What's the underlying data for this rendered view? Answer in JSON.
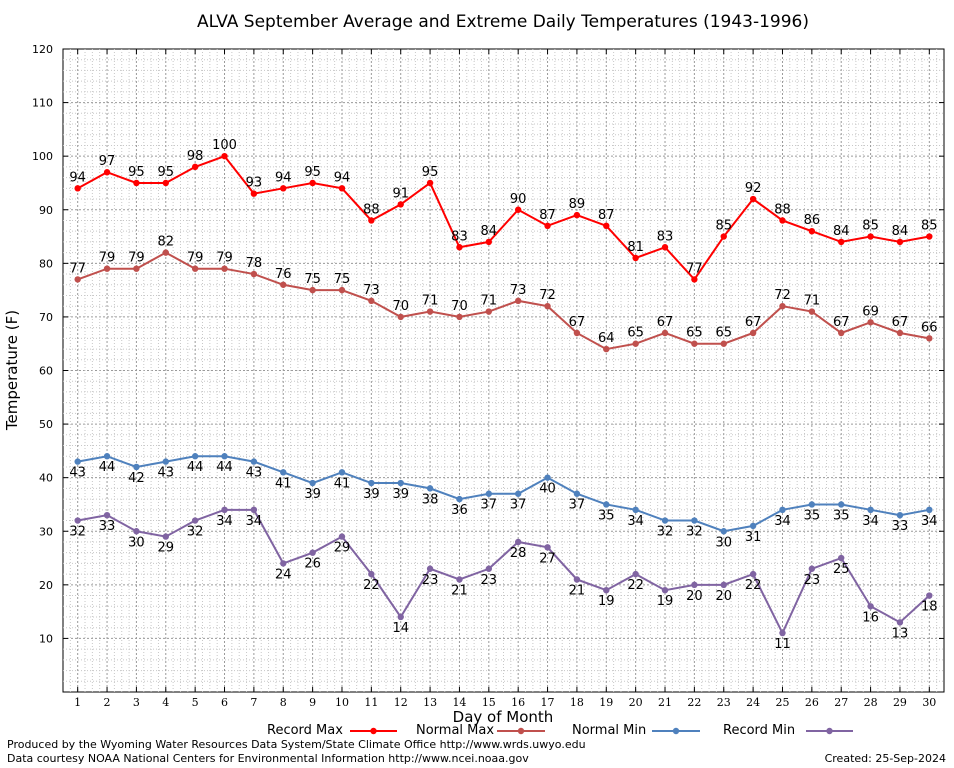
{
  "credits": {
    "line1": "Produced by the Wyoming Water Resources Data System/State Climate Office http://www.wrds.uwyo.edu",
    "line2": "Data courtesy NOAA National Centers for Environmental Information http://www.ncei.noaa.gov",
    "created": "Created:  25-Sep-2024"
  },
  "chart_data": {
    "type": "line",
    "title": "ALVA September Average and Extreme Daily Temperatures (1943-1996)",
    "xlabel": "Day of Month",
    "ylabel": "Temperature (F)",
    "ylim": [
      0,
      120
    ],
    "yticks": [
      10,
      20,
      30,
      40,
      50,
      60,
      70,
      80,
      90,
      100,
      110,
      120
    ],
    "grid": true,
    "legend_position": "bottom",
    "categories": [
      "1",
      "2",
      "3",
      "4",
      "5",
      "6",
      "7",
      "8",
      "9",
      "10",
      "11",
      "12",
      "13",
      "14",
      "15",
      "16",
      "17",
      "18",
      "19",
      "20",
      "21",
      "22",
      "23",
      "24",
      "25",
      "26",
      "27",
      "28",
      "29",
      "30"
    ],
    "series": [
      {
        "name": "Record Max",
        "color": "#ff0000",
        "label_position": "above",
        "values": [
          94,
          97,
          95,
          95,
          98,
          100,
          93,
          94,
          95,
          94,
          88,
          91,
          95,
          83,
          84,
          90,
          87,
          89,
          87,
          81,
          83,
          77,
          85,
          92,
          88,
          86,
          84,
          85,
          84,
          85
        ]
      },
      {
        "name": "Normal Max",
        "color": "#c0504d",
        "label_position": "above",
        "values": [
          77,
          79,
          79,
          82,
          79,
          79,
          78,
          76,
          75,
          75,
          73,
          70,
          71,
          70,
          71,
          73,
          72,
          67,
          64,
          65,
          67,
          65,
          65,
          67,
          72,
          71,
          67,
          69,
          67,
          66
        ]
      },
      {
        "name": "Normal Min",
        "color": "#4f81bd",
        "label_position": "below",
        "values": [
          43,
          44,
          42,
          43,
          44,
          44,
          43,
          41,
          39,
          41,
          39,
          39,
          38,
          36,
          37,
          37,
          40,
          37,
          35,
          34,
          32,
          32,
          30,
          31,
          34,
          35,
          35,
          34,
          33,
          34
        ]
      },
      {
        "name": "Record Min",
        "color": "#8064a2",
        "label_position": "below",
        "values": [
          32,
          33,
          30,
          29,
          32,
          34,
          34,
          24,
          26,
          29,
          22,
          14,
          23,
          21,
          23,
          28,
          27,
          21,
          19,
          22,
          19,
          20,
          20,
          22,
          11,
          23,
          25,
          16,
          13,
          18
        ]
      }
    ]
  }
}
